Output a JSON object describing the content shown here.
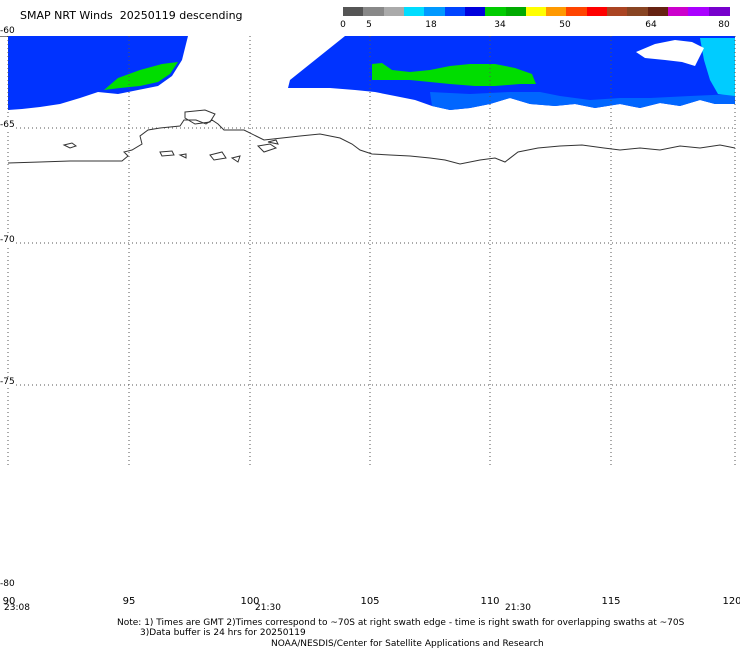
{
  "title": "SMAP NRT Winds  20250119 descending",
  "colorbar": {
    "labels": [
      "0",
      "5",
      "18",
      "34",
      "50",
      "64",
      "80"
    ],
    "colors": [
      "#555555",
      "#888888",
      "#aaaaaa",
      "#00ddff",
      "#0099ff",
      "#0044ff",
      "#0000dd",
      "#00cc00",
      "#00aa00",
      "#ffff00",
      "#ff9900",
      "#ff4400",
      "#ff0000",
      "#aa4422",
      "#884422",
      "#662211",
      "#cc00cc",
      "#aa00ff",
      "#7700cc"
    ]
  },
  "map": {
    "lat_labels": [
      "-60",
      "-65",
      "-70",
      "-75",
      "-80"
    ],
    "lon_labels": [
      "90",
      "95",
      "100",
      "105",
      "110",
      "115",
      "120"
    ],
    "times": [
      "23:08",
      "21:30",
      "21:30"
    ],
    "swath_colors": {
      "low": "#0033ff",
      "mid": "#0066ff",
      "edge": "#00ccff",
      "high": "#00dd00"
    },
    "coast_color": "#333333",
    "grid_color": "#555555"
  },
  "notes": {
    "line1": "Note: 1) Times are GMT 2)Times correspond to ~70S at right swath edge - time is right swath for overlapping swaths at ~70S",
    "line2": "3)Data buffer is 24 hrs for 20250119",
    "line3": "NOAA/NESDIS/Center for Satellite Applications and Research"
  }
}
